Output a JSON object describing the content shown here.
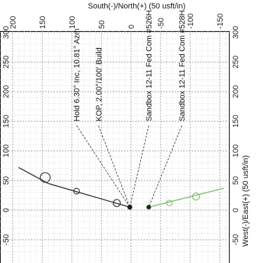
{
  "chart_data": {
    "type": "scatter",
    "title": "",
    "x_axis": {
      "label": "West(-)/East(+) (50 usft/in)",
      "range": [
        -70,
        310
      ],
      "ticks": [
        -50,
        0,
        50,
        100,
        150,
        200,
        250,
        300
      ],
      "tick_labels": [
        "-50",
        "0",
        "50",
        "100",
        "150",
        "200",
        "250",
        "300"
      ]
    },
    "y_axis": {
      "label": "South(-)/North(+) (50 usft/in)",
      "range": [
        -160,
        200
      ],
      "ticks": [
        200,
        150,
        100,
        50,
        0,
        -50,
        -100,
        -150
      ],
      "tick_labels": [
        "200",
        "150",
        "100",
        "50",
        "0",
        "-50",
        "-100",
        "-150"
      ]
    },
    "grid": true,
    "series": [
      {
        "color": "#333333",
        "line": [
          [
            5,
            2
          ],
          [
            45,
            140
          ],
          [
            72,
            190
          ]
        ],
        "markers": [
          [
            5,
            2
          ],
          [
            12,
            24
          ],
          [
            32,
            92
          ],
          [
            55,
            145
          ]
        ]
      },
      {
        "color": "#7cc26b",
        "line": [
          [
            5,
            -30
          ],
          [
            37,
            -157
          ]
        ],
        "markers": [
          [
            5,
            -30
          ],
          [
            12,
            -65
          ],
          [
            23,
            -110
          ]
        ]
      }
    ],
    "well_points": [
      {
        "x": 5,
        "y": 2,
        "color": "#222222"
      },
      {
        "x": 5,
        "y": -30,
        "color": "#222222"
      }
    ],
    "annotations": [
      {
        "text": "Hold 6.30° Inc, 10.81° Azm",
        "x": 150,
        "y": 92,
        "target": [
          5,
          2
        ]
      },
      {
        "text": "KOP, 2.00°/100' Build",
        "x": 150,
        "y": 55,
        "target": [
          5,
          2
        ]
      },
      {
        "text": "Sandbox 12-11 Fed Com #526H",
        "x": 150,
        "y": -30,
        "target": [
          5,
          2
        ]
      },
      {
        "text": "Sandbox 12-11 Fed Com #528H",
        "x": 150,
        "y": -86,
        "target": [
          5,
          -30
        ]
      }
    ]
  }
}
